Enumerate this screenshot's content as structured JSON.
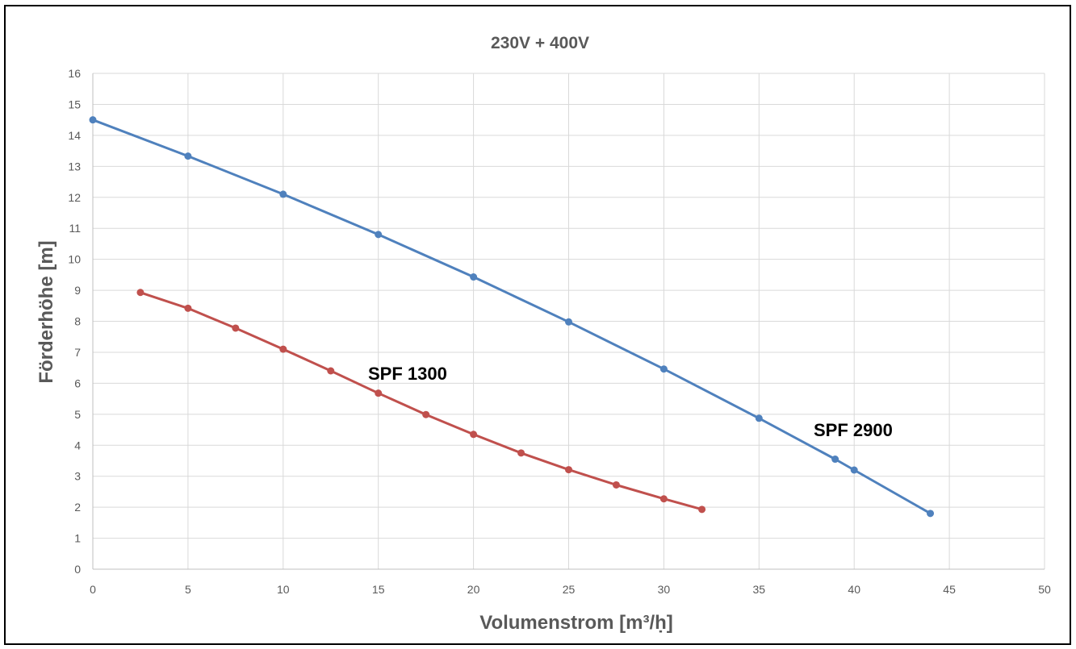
{
  "chart_data": {
    "type": "line",
    "title": "230V + 400V",
    "xlabel": "Volumenstrom [m³/ḥ]",
    "ylabel": "Förderhöhe [m]",
    "xlim": [
      0,
      50
    ],
    "ylim": [
      0,
      16
    ],
    "x_ticks": [
      0,
      5,
      10,
      15,
      20,
      25,
      30,
      35,
      40,
      45,
      50
    ],
    "y_ticks": [
      0,
      1,
      2,
      3,
      4,
      5,
      6,
      7,
      8,
      9,
      10,
      11,
      12,
      13,
      14,
      15,
      16
    ],
    "grid": true,
    "legend": "none",
    "series": [
      {
        "name": "SPF 2900",
        "color": "#4f81bd",
        "x": [
          0,
          5,
          10,
          15,
          20,
          25,
          30,
          35,
          39,
          40,
          44
        ],
        "y": [
          14.5,
          13.33,
          12.1,
          10.8,
          9.43,
          7.98,
          6.46,
          4.87,
          3.55,
          3.2,
          1.8
        ]
      },
      {
        "name": "SPF 1300",
        "color": "#c0504d",
        "x": [
          2.5,
          5,
          7.5,
          10,
          12.5,
          15,
          17.5,
          20,
          22.5,
          25,
          27.5,
          30,
          32
        ],
        "y": [
          8.93,
          8.42,
          7.78,
          7.1,
          6.4,
          5.68,
          4.99,
          4.35,
          3.75,
          3.21,
          2.72,
          2.27,
          1.93
        ]
      }
    ],
    "annotations": [
      {
        "text": "SPF 1300",
        "series": 1
      },
      {
        "text": "SPF 2900",
        "series": 0
      }
    ]
  }
}
